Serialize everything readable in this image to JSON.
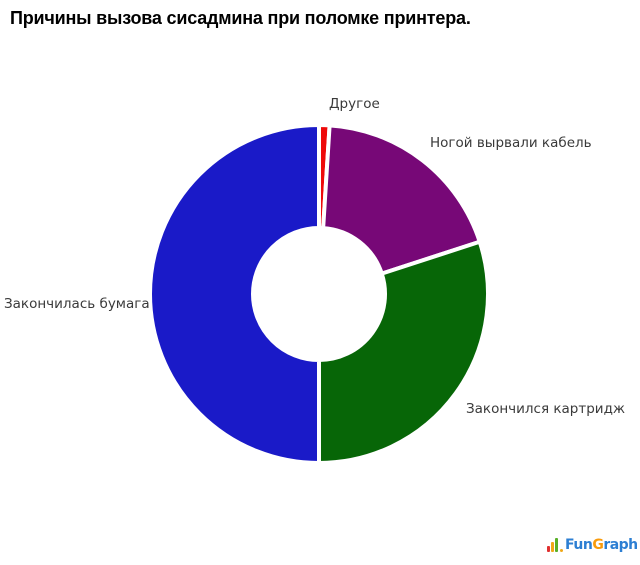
{
  "title": "Причины вызова сисадмина при поломке принтера.",
  "chart_data": {
    "type": "pie",
    "subtype": "donut",
    "title": "Причины вызова сисадмина при поломке принтера.",
    "start_angle_deg": 0,
    "direction": "clockwise",
    "inner_radius_ratio": 0.39,
    "background": "#ffffff",
    "separator_color": "#ffffff",
    "legend_position": "labels-around-chart",
    "slices": [
      {
        "label": "Другое",
        "value": 1,
        "color": "#ee0a0a"
      },
      {
        "label": "Ногой вырвали кабель",
        "value": 19,
        "color": "#770877"
      },
      {
        "label": "Закончился картридж",
        "value": 30,
        "color": "#076607"
      },
      {
        "label": "Закончилась бумага",
        "value": 50,
        "color": "#1a1ac8"
      }
    ]
  },
  "logo": {
    "icon": "bar-chart-icon",
    "text_fun": "Fun",
    "text_g": "G",
    "text_raph": "raph"
  }
}
